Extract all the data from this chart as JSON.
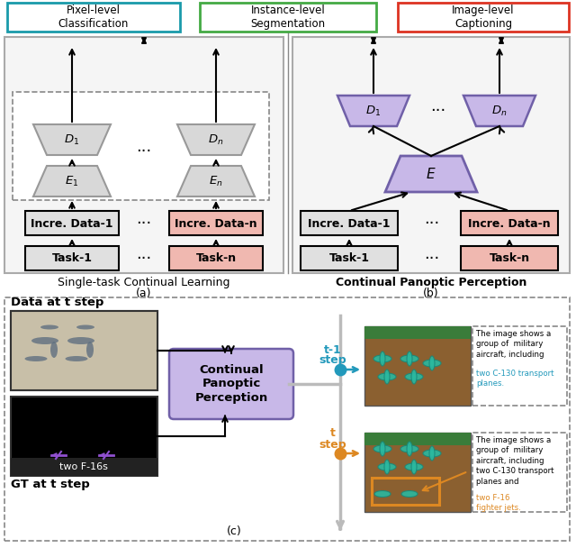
{
  "fig_width": 6.4,
  "fig_height": 6.08,
  "bg_color": "#ffffff",
  "task1_color": "#e0e0e0",
  "taskn_color": "#f0b8b0",
  "data1_color": "#e0e0e0",
  "dataN_color": "#f0b8b0",
  "enc_dec_color": "#d8d8d8",
  "enc_dec_ec": "#999999",
  "dec_b_color": "#c8b8e8",
  "enc_b_color": "#c8b8e8",
  "enc_b_ec": "#7060a8",
  "dec_b_ec": "#7060a8",
  "cpp_box_color": "#c8b8e8",
  "cpp_box_ec": "#7060a8",
  "cyan_ec": "#1a9aaa",
  "green_ec": "#44aa44",
  "red_ec": "#dd3322",
  "gray_dash": "#888888",
  "t1_color": "#2299bb",
  "t_color": "#dd8822",
  "output_bg": "#8B6030",
  "green_strip": "#3a7c3a",
  "teal_plane": "#2ab8a0",
  "section_a_title": "Single-task Continual Learning",
  "section_b_title": "Continual Panoptic Perception",
  "section_a_sub": "(a)",
  "section_b_sub": "(b)",
  "section_c_sub": "(c)"
}
